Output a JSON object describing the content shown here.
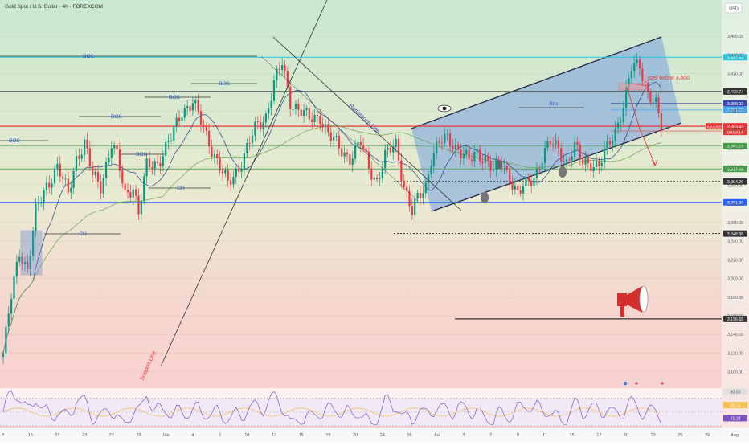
{
  "header": {
    "symbol_title": "Gold Spot / U.S. Dollar · 4h · FOREXCOM",
    "currency": "USD"
  },
  "chart_data": {
    "type": "candlestick",
    "title": "Gold Spot / U.S. Dollar · 4h · FOREXCOM",
    "currency": "USD",
    "ylim": [
      3085,
      3480
    ],
    "y_ticks": [
      3460,
      3440,
      3420,
      3400,
      3380,
      3360,
      3340,
      3320,
      3300,
      3280,
      3260,
      3240,
      3220,
      3200,
      3180,
      3160,
      3140,
      3120,
      3100
    ],
    "y_tick_labels": [
      "3,460.00",
      "3,440.00",
      "3,420.00",
      "3,400.00",
      "3,380.00",
      "3,360.00",
      "3,340.00",
      "3,320.00",
      "3,300.00",
      "3,280.00",
      "3,260.00",
      "3,240.00",
      "3,220.00",
      "3,200.00",
      "3,180.00",
      "3,160.00",
      "3,140.00",
      "3,120.00",
      "3,100.00"
    ],
    "x_ticks": [
      {
        "label": "5",
        "bar": 0
      },
      {
        "label": "18",
        "bar": 10
      },
      {
        "label": "21",
        "bar": 20
      },
      {
        "label": "23",
        "bar": 30
      },
      {
        "label": "27",
        "bar": 40
      },
      {
        "label": "29",
        "bar": 50
      },
      {
        "label": "Jun",
        "bar": 60
      },
      {
        "label": "4",
        "bar": 70
      },
      {
        "label": "6",
        "bar": 80
      },
      {
        "label": "10",
        "bar": 90
      },
      {
        "label": "12",
        "bar": 100
      },
      {
        "label": "15",
        "bar": 110
      },
      {
        "label": "18",
        "bar": 120
      },
      {
        "label": "20",
        "bar": 130
      },
      {
        "label": "24",
        "bar": 140
      },
      {
        "label": "26",
        "bar": 150
      },
      {
        "label": "Jul",
        "bar": 160
      },
      {
        "label": "3",
        "bar": 170
      },
      {
        "label": "7",
        "bar": 180
      },
      {
        "label": "9",
        "bar": 190
      },
      {
        "label": "11",
        "bar": 200
      },
      {
        "label": "15",
        "bar": 210
      },
      {
        "label": "17",
        "bar": 220
      },
      {
        "label": "20",
        "bar": 230
      },
      {
        "label": "22",
        "bar": 240
      },
      {
        "label": "25",
        "bar": 250
      },
      {
        "label": "29",
        "bar": 260
      },
      {
        "label": "Aug",
        "bar": 270
      },
      {
        "label": "5",
        "bar": 280
      }
    ],
    "price_key_points": [
      [
        0,
        3120
      ],
      [
        3,
        3180
      ],
      [
        6,
        3230
      ],
      [
        9,
        3210
      ],
      [
        12,
        3270
      ],
      [
        16,
        3300
      ],
      [
        20,
        3320
      ],
      [
        24,
        3290
      ],
      [
        27,
        3330
      ],
      [
        30,
        3345
      ],
      [
        33,
        3310
      ],
      [
        36,
        3300
      ],
      [
        40,
        3345
      ],
      [
        42,
        3330
      ],
      [
        45,
        3290
      ],
      [
        48,
        3300
      ],
      [
        50,
        3270
      ],
      [
        53,
        3320
      ],
      [
        57,
        3325
      ],
      [
        60,
        3340
      ],
      [
        62,
        3350
      ],
      [
        66,
        3380
      ],
      [
        70,
        3390
      ],
      [
        74,
        3360
      ],
      [
        77,
        3340
      ],
      [
        80,
        3320
      ],
      [
        83,
        3300
      ],
      [
        87,
        3320
      ],
      [
        90,
        3340
      ],
      [
        93,
        3360
      ],
      [
        97,
        3375
      ],
      [
        100,
        3410
      ],
      [
        103,
        3430
      ],
      [
        106,
        3390
      ],
      [
        110,
        3380
      ],
      [
        113,
        3370
      ],
      [
        117,
        3375
      ],
      [
        120,
        3355
      ],
      [
        124,
        3340
      ],
      [
        128,
        3330
      ],
      [
        132,
        3345
      ],
      [
        135,
        3320
      ],
      [
        138,
        3305
      ],
      [
        141,
        3330
      ],
      [
        145,
        3345
      ],
      [
        148,
        3300
      ],
      [
        151,
        3270
      ],
      [
        153,
        3285
      ],
      [
        156,
        3300
      ],
      [
        158,
        3330
      ],
      [
        161,
        3345
      ],
      [
        164,
        3350
      ],
      [
        168,
        3340
      ],
      [
        172,
        3325
      ],
      [
        175,
        3335
      ],
      [
        178,
        3330
      ],
      [
        181,
        3315
      ],
      [
        184,
        3325
      ],
      [
        187,
        3310
      ],
      [
        190,
        3290
      ],
      [
        193,
        3300
      ],
      [
        196,
        3310
      ],
      [
        199,
        3330
      ],
      [
        202,
        3345
      ],
      [
        205,
        3340
      ],
      [
        208,
        3325
      ],
      [
        211,
        3340
      ],
      [
        214,
        3325
      ],
      [
        217,
        3325
      ],
      [
        220,
        3320
      ],
      [
        223,
        3340
      ],
      [
        226,
        3360
      ],
      [
        229,
        3385
      ],
      [
        232,
        3425
      ],
      [
        235,
        3430
      ],
      [
        238,
        3400
      ],
      [
        241,
        3385
      ],
      [
        243,
        3360
      ]
    ],
    "moving_average_series": "MA",
    "horizontal_levels": [
      {
        "price": 3437.53,
        "label": "3,437.53",
        "color": "#26c6da"
      },
      {
        "price": 3400.74,
        "label": "3,400.74",
        "color": "#333333"
      },
      {
        "price": 3388.03,
        "label": "3,388.03",
        "color": "#3949ab"
      },
      {
        "price": 3381.02,
        "label": "3,381.02",
        "color": "#42a5f5"
      },
      {
        "price": 3363.43,
        "label": "3,363.43",
        "color": "#e53935"
      },
      {
        "price": 3358.37,
        "label": "3,358.37",
        "color": "#e53935"
      },
      {
        "price": 3342.15,
        "label": "3,342.15",
        "color": "#43a047"
      },
      {
        "price": 3317.68,
        "label": "3,317.68",
        "color": "#43a047"
      },
      {
        "price": 3304.26,
        "label": "3,304.26",
        "color": "#333333"
      },
      {
        "price": 3281.9,
        "label": "3,281.90",
        "color": "#2962ff"
      },
      {
        "price": 3248.36,
        "label": "3,248.36",
        "color": "#333333"
      },
      {
        "price": 3156.68,
        "label": "3,156.68",
        "color": "#333333"
      }
    ],
    "current_price_tag": {
      "symbol": "XAUUSD",
      "price": "3,363.43",
      "countdown": "00:03:14"
    },
    "annotations": [
      {
        "text": "BOS",
        "kind": "structure-break"
      },
      {
        "text": "BOS",
        "kind": "structure-break"
      },
      {
        "text": "BOS",
        "kind": "structure-break"
      },
      {
        "text": "BOS",
        "kind": "structure-break"
      },
      {
        "text": "BOS",
        "kind": "structure-break"
      },
      {
        "text": "BOS",
        "kind": "structure-break"
      },
      {
        "text": "BOS",
        "kind": "structure-break"
      },
      {
        "text": "CH",
        "kind": "change-of-character"
      },
      {
        "text": "CH",
        "kind": "change-of-character"
      },
      {
        "text": "Bos",
        "kind": "structure-break"
      },
      {
        "text": "Resistance Line",
        "kind": "trendline"
      },
      {
        "text": "Support Line",
        "kind": "trendline"
      },
      {
        "text": "sell below 3,400",
        "kind": "trade-note"
      }
    ],
    "rsi": {
      "ylim": [
        30,
        85
      ],
      "levels": [
        {
          "value": 80,
          "label": "80.00"
        },
        {
          "value": 60.25,
          "label": "60.25"
        },
        {
          "value": 41.14,
          "label": "41.14"
        }
      ]
    }
  }
}
